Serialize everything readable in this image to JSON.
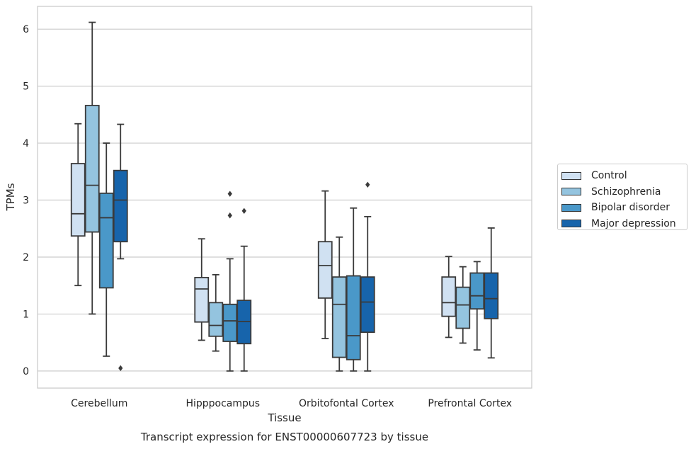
{
  "chart_data": {
    "type": "boxplot",
    "title": "Transcript expression for ENST00000607723 by tissue",
    "xlabel": "Tissue",
    "ylabel": "TPMs",
    "ylim": [
      -0.3,
      6.4
    ],
    "yticks": [
      0,
      1,
      2,
      3,
      4,
      5,
      6
    ],
    "categories": [
      "Cerebellum",
      "Hipppocampus",
      "Orbitofontal Cortex",
      "Prefrontal Cortex"
    ],
    "grid": true,
    "legend_position": "right, outside plot",
    "series": [
      {
        "name": "Control",
        "color": "#d0e1f2",
        "boxes": [
          {
            "whislo": 1.5,
            "q1": 2.37,
            "med": 2.76,
            "q3": 3.64,
            "whishi": 4.34,
            "fliers": []
          },
          {
            "whislo": 0.54,
            "q1": 0.86,
            "med": 1.44,
            "q3": 1.64,
            "whishi": 2.32,
            "fliers": []
          },
          {
            "whislo": 0.57,
            "q1": 1.28,
            "med": 1.85,
            "q3": 2.27,
            "whishi": 3.16,
            "fliers": []
          },
          {
            "whislo": 0.59,
            "q1": 0.96,
            "med": 1.2,
            "q3": 1.65,
            "whishi": 2.01,
            "fliers": []
          }
        ]
      },
      {
        "name": "Schizophrenia",
        "color": "#94c4df",
        "boxes": [
          {
            "whislo": 1.0,
            "q1": 2.44,
            "med": 3.26,
            "q3": 4.66,
            "whishi": 6.12,
            "fliers": []
          },
          {
            "whislo": 0.35,
            "q1": 0.61,
            "med": 0.8,
            "q3": 1.2,
            "whishi": 1.69,
            "fliers": []
          },
          {
            "whislo": 0.0,
            "q1": 0.24,
            "med": 1.17,
            "q3": 1.65,
            "whishi": 2.35,
            "fliers": []
          },
          {
            "whislo": 0.49,
            "q1": 0.75,
            "med": 1.16,
            "q3": 1.47,
            "whishi": 1.83,
            "fliers": []
          }
        ]
      },
      {
        "name": "Bipolar disorder",
        "color": "#4a98c9",
        "boxes": [
          {
            "whislo": 0.26,
            "q1": 1.46,
            "med": 2.69,
            "q3": 3.12,
            "whishi": 4.0,
            "fliers": []
          },
          {
            "whislo": 0.0,
            "q1": 0.52,
            "med": 0.88,
            "q3": 1.17,
            "whishi": 1.97,
            "fliers": [
              2.73,
              3.11
            ]
          },
          {
            "whislo": 0.0,
            "q1": 0.2,
            "med": 0.62,
            "q3": 1.67,
            "whishi": 2.86,
            "fliers": []
          },
          {
            "whislo": 0.37,
            "q1": 1.09,
            "med": 1.32,
            "q3": 1.72,
            "whishi": 1.92,
            "fliers": []
          }
        ]
      },
      {
        "name": "Major depression",
        "color": "#1764ab",
        "boxes": [
          {
            "whislo": 1.97,
            "q1": 2.27,
            "med": 3.0,
            "q3": 3.52,
            "whishi": 4.33,
            "fliers": [
              0.05
            ]
          },
          {
            "whislo": 0.0,
            "q1": 0.48,
            "med": 0.87,
            "q3": 1.24,
            "whishi": 2.19,
            "fliers": [
              2.81
            ]
          },
          {
            "whislo": 0.0,
            "q1": 0.68,
            "med": 1.21,
            "q3": 1.65,
            "whishi": 2.71,
            "fliers": [
              3.27
            ]
          },
          {
            "whislo": 0.23,
            "q1": 0.92,
            "med": 1.27,
            "q3": 1.72,
            "whishi": 2.51,
            "fliers": []
          }
        ]
      }
    ]
  }
}
